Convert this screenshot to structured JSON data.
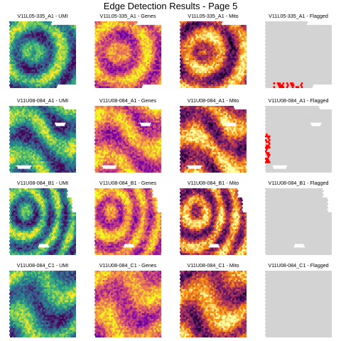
{
  "title": "Edge Detection Results - Page 5",
  "colormaps": {
    "viridis": [
      "#440154",
      "#3b528b",
      "#21908c",
      "#5dc863",
      "#fde725"
    ],
    "plasma": [
      "#0d0887",
      "#7e03a8",
      "#cc4778",
      "#f89540",
      "#f0f921"
    ],
    "inferno": [
      "#000004",
      "#56106e",
      "#bb3754",
      "#f98e09",
      "#fcffa4"
    ],
    "flagged": {
      "background": "#d3d3d3",
      "edge": "#ff0000"
    }
  },
  "rows": [
    {
      "sample": "V11L05-335_A1",
      "panels": [
        {
          "label": "V11L05-335_A1 - UMI",
          "cmap": "viridis"
        },
        {
          "label": "V11L05-335_A1 - Genes",
          "cmap": "plasma"
        },
        {
          "label": "V11L05-335_A1 - Mito",
          "cmap": "inferno"
        },
        {
          "label": "V11L05-335_A1 - Flagged",
          "cmap": "flagged"
        }
      ]
    },
    {
      "sample": "V11U08-084_A1",
      "panels": [
        {
          "label": "V11U08-084_A1 - UMI",
          "cmap": "viridis"
        },
        {
          "label": "V11U08-084_A1 - Genes",
          "cmap": "plasma"
        },
        {
          "label": "V11U08-084_A1 - Mito",
          "cmap": "inferno"
        },
        {
          "label": "V11U08-084_A1 - Flagged",
          "cmap": "flagged"
        }
      ]
    },
    {
      "sample": "V11U08-084_B1",
      "panels": [
        {
          "label": "V11U08-084_B1 - UMI",
          "cmap": "viridis"
        },
        {
          "label": "V11U08-084_B1 - Genes",
          "cmap": "plasma"
        },
        {
          "label": "V11U08-084_B1 - Mito",
          "cmap": "inferno"
        },
        {
          "label": "V11U08-084_B1 - Flagged",
          "cmap": "flagged"
        }
      ]
    },
    {
      "sample": "V11U08-084_C1",
      "panels": [
        {
          "label": "V11U08-084_C1 - UMI",
          "cmap": "viridis"
        },
        {
          "label": "V11U08-084_C1 - Genes",
          "cmap": "plasma"
        },
        {
          "label": "V11U08-084_C1 - Mito",
          "cmap": "inferno"
        },
        {
          "label": "V11U08-084_C1 - Flagged",
          "cmap": "flagged"
        }
      ]
    }
  ]
}
